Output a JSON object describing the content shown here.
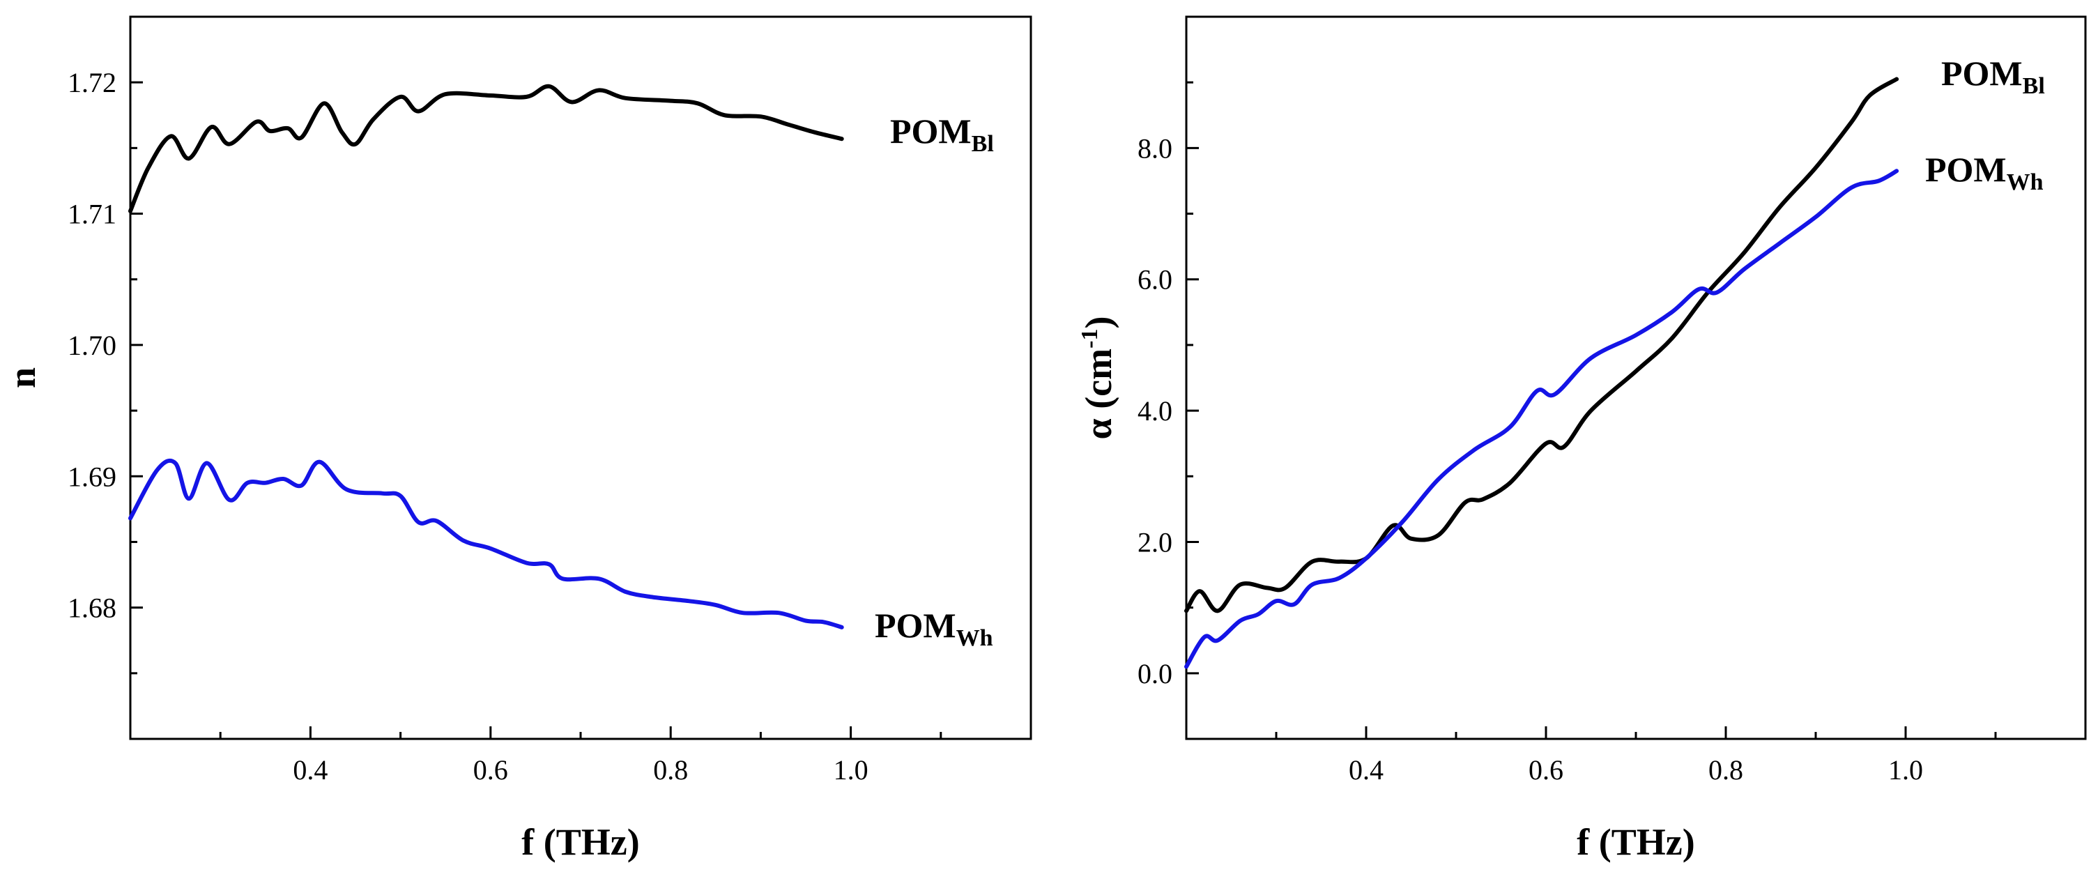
{
  "colors": {
    "black_series": "#000000",
    "blue_series": "#1414e6"
  },
  "chart_data": [
    {
      "type": "line",
      "title": "",
      "xlabel": "f (THz)",
      "ylabel": "n",
      "xlim": [
        0.2,
        1.2
      ],
      "ylim": [
        1.67,
        1.725
      ],
      "xticks": [
        0.4,
        0.6,
        0.8,
        1.0
      ],
      "xtick_labels": [
        "0.4",
        "0.6",
        "0.8",
        "1.0"
      ],
      "yticks": [
        1.68,
        1.69,
        1.7,
        1.71,
        1.72
      ],
      "ytick_labels": [
        "1.68",
        "1.69",
        "1.70",
        "1.71",
        "1.72"
      ],
      "series": [
        {
          "name": "POM_Bl",
          "label_main": "POM",
          "label_sub": "Bl",
          "color": "#000000",
          "x": [
            0.2,
            0.22,
            0.245,
            0.265,
            0.29,
            0.31,
            0.34,
            0.355,
            0.375,
            0.39,
            0.415,
            0.435,
            0.45,
            0.47,
            0.5,
            0.52,
            0.55,
            0.6,
            0.64,
            0.665,
            0.69,
            0.72,
            0.75,
            0.8,
            0.83,
            0.86,
            0.9,
            0.93,
            0.96,
            0.99
          ],
          "y": [
            1.7102,
            1.7135,
            1.7159,
            1.7142,
            1.7166,
            1.7153,
            1.717,
            1.7163,
            1.7165,
            1.7158,
            1.7184,
            1.7162,
            1.7153,
            1.7172,
            1.7189,
            1.7178,
            1.7191,
            1.719,
            1.7189,
            1.7197,
            1.7185,
            1.7194,
            1.7188,
            1.7186,
            1.7184,
            1.7175,
            1.7174,
            1.7168,
            1.7162,
            1.7157
          ]
        },
        {
          "name": "POM_Wh",
          "label_main": "POM",
          "label_sub": "Wh",
          "color": "#1414e6",
          "x": [
            0.2,
            0.23,
            0.25,
            0.265,
            0.285,
            0.31,
            0.33,
            0.35,
            0.37,
            0.39,
            0.41,
            0.44,
            0.48,
            0.5,
            0.52,
            0.54,
            0.57,
            0.6,
            0.64,
            0.665,
            0.68,
            0.72,
            0.75,
            0.78,
            0.82,
            0.85,
            0.88,
            0.92,
            0.95,
            0.97,
            0.99
          ],
          "y": [
            1.6868,
            1.6905,
            1.691,
            1.6883,
            1.691,
            1.6882,
            1.6895,
            1.6895,
            1.6898,
            1.6893,
            1.6911,
            1.689,
            1.6887,
            1.6885,
            1.6865,
            1.6866,
            1.6851,
            1.6845,
            1.6834,
            1.6833,
            1.6822,
            1.6822,
            1.6812,
            1.6808,
            1.6805,
            1.6802,
            1.6796,
            1.6796,
            1.679,
            1.6789,
            1.6785
          ]
        }
      ]
    },
    {
      "type": "line",
      "title": "",
      "xlabel": "f (THz)",
      "ylabel": "α (cm-1)",
      "ylabel_main": "α (cm",
      "ylabel_sup": "-1",
      "ylabel_end": ")",
      "xlim": [
        0.2,
        1.2
      ],
      "ylim": [
        -1.0,
        10.0
      ],
      "xticks": [
        0.4,
        0.6,
        0.8,
        1.0
      ],
      "xtick_labels": [
        "0.4",
        "0.6",
        "0.8",
        "1.0"
      ],
      "yticks": [
        0.0,
        2.0,
        4.0,
        6.0,
        8.0
      ],
      "ytick_labels": [
        "0.0",
        "2.0",
        "4.0",
        "6.0",
        "8.0"
      ],
      "series": [
        {
          "name": "POM_Bl",
          "label_main": "POM",
          "label_sub": "Bl",
          "color": "#000000",
          "x": [
            0.2,
            0.215,
            0.235,
            0.26,
            0.29,
            0.31,
            0.34,
            0.37,
            0.4,
            0.43,
            0.45,
            0.48,
            0.51,
            0.53,
            0.56,
            0.6,
            0.62,
            0.65,
            0.7,
            0.74,
            0.78,
            0.82,
            0.86,
            0.9,
            0.94,
            0.96,
            0.99
          ],
          "y": [
            0.95,
            1.25,
            0.95,
            1.35,
            1.3,
            1.3,
            1.7,
            1.7,
            1.75,
            2.25,
            2.05,
            2.1,
            2.6,
            2.65,
            2.9,
            3.5,
            3.45,
            4.0,
            4.6,
            5.1,
            5.8,
            6.4,
            7.1,
            7.7,
            8.4,
            8.8,
            9.05
          ]
        },
        {
          "name": "POM_Wh",
          "label_main": "POM",
          "label_sub": "Wh",
          "color": "#1414e6",
          "x": [
            0.2,
            0.22,
            0.235,
            0.26,
            0.28,
            0.3,
            0.32,
            0.34,
            0.37,
            0.4,
            0.44,
            0.48,
            0.52,
            0.56,
            0.59,
            0.61,
            0.65,
            0.7,
            0.74,
            0.77,
            0.79,
            0.82,
            0.86,
            0.9,
            0.94,
            0.97,
            0.99
          ],
          "y": [
            0.1,
            0.55,
            0.5,
            0.8,
            0.9,
            1.1,
            1.05,
            1.35,
            1.45,
            1.75,
            2.3,
            2.95,
            3.4,
            3.75,
            4.3,
            4.25,
            4.8,
            5.15,
            5.5,
            5.85,
            5.8,
            6.15,
            6.55,
            6.95,
            7.4,
            7.5,
            7.65
          ]
        }
      ]
    }
  ]
}
